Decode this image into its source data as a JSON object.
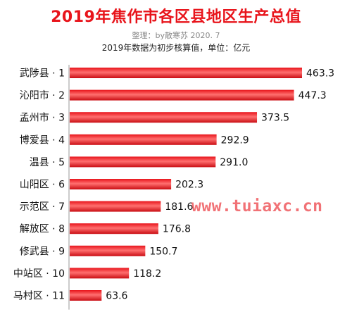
{
  "header": {
    "title": "2019年焦作市各区县地区生产总值",
    "subtitle": "整理：by散寒苏  2020. 7",
    "note": "2019年数据为初步核算值，单位：亿元"
  },
  "watermark": "www.tuiaxc.cn",
  "colors": {
    "bar": "#e8141b",
    "bar_highlight": "#ff6f6f",
    "axis": "#999999",
    "title": "#e8141b"
  },
  "chart_data": {
    "type": "bar",
    "orientation": "horizontal",
    "categories": [
      "武陟县 · 1",
      "沁阳市 · 2",
      "孟州市 · 3",
      "博爱县 · 4",
      "温县 · 5",
      "山阳区 · 6",
      "示范区 · 7",
      "解放区 · 8",
      "修武县 · 9",
      "中站区 · 10",
      "马村区 · 11"
    ],
    "values": [
      463.3,
      447.3,
      373.5,
      292.9,
      291.0,
      202.3,
      181.6,
      176.8,
      150.7,
      118.2,
      63.6
    ],
    "value_labels": [
      "463.3",
      "447.3",
      "373.5",
      "292.9",
      "291.0",
      "202.3",
      "181.6",
      "176.8",
      "150.7",
      "118.2",
      "63.6"
    ],
    "xlim": [
      0,
      463.3
    ],
    "grid": false,
    "legend": "none"
  }
}
